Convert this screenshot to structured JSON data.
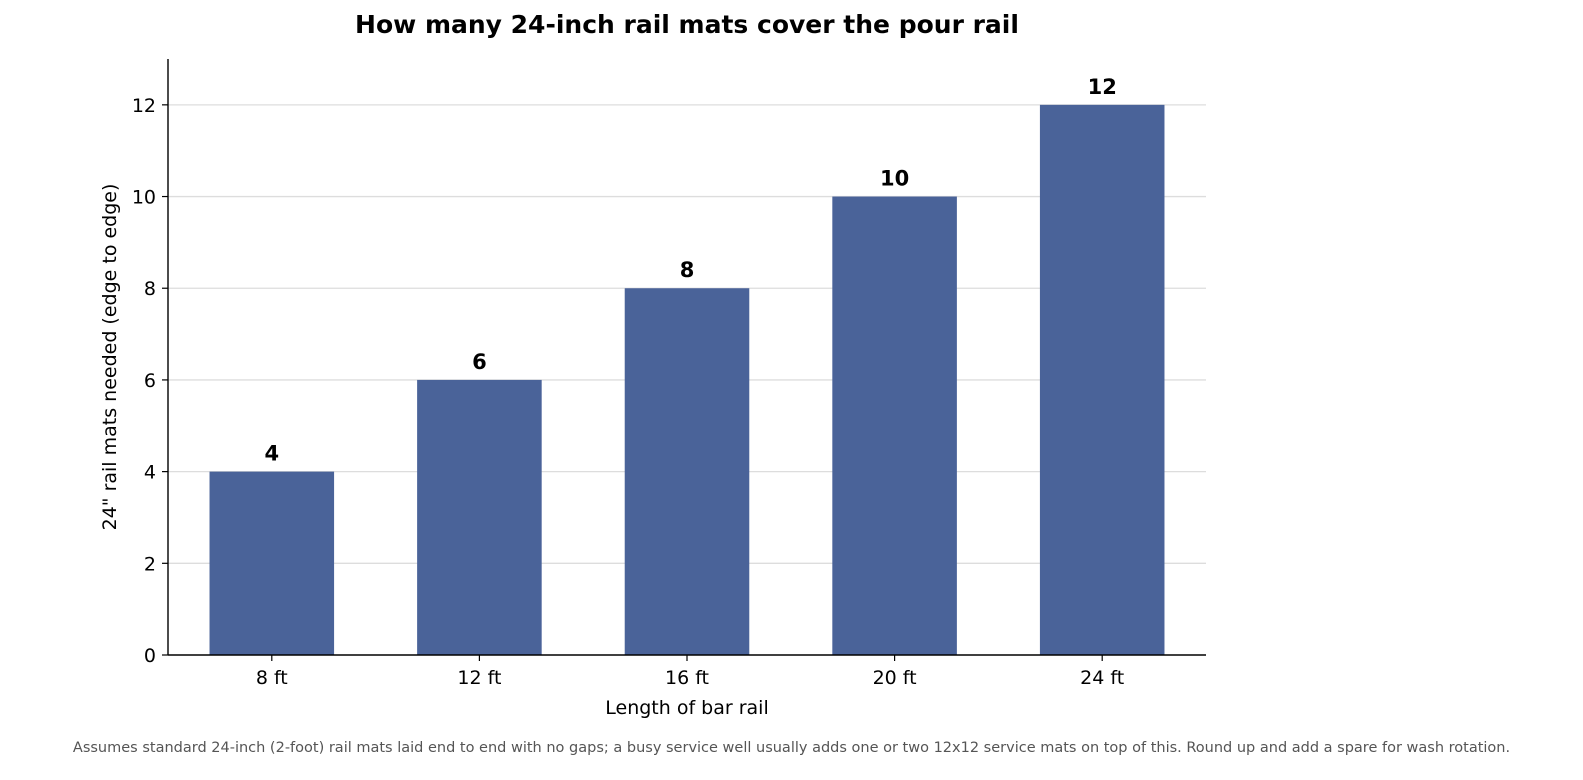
{
  "chart_data": {
    "type": "bar",
    "title": "How many 24-inch rail mats cover the pour rail",
    "xlabel": "Length of bar rail",
    "ylabel": "24\" rail mats needed (edge to edge)",
    "categories": [
      "8 ft",
      "12 ft",
      "16 ft",
      "20 ft",
      "24 ft"
    ],
    "values": [
      4,
      6,
      8,
      10,
      12
    ],
    "data_labels": [
      "4",
      "6",
      "8",
      "10",
      "12"
    ],
    "ylim": [
      0,
      13
    ],
    "yticks": [
      0,
      2,
      4,
      6,
      8,
      10,
      12
    ],
    "grid": "horizontal",
    "bar_color": "#4a6399",
    "footnote": "Assumes standard 24-inch (2-foot) rail mats laid end to end with no gaps; a busy service well usually adds one or two 12x12 service mats on top of this. Round up and add a spare for wash rotation."
  }
}
